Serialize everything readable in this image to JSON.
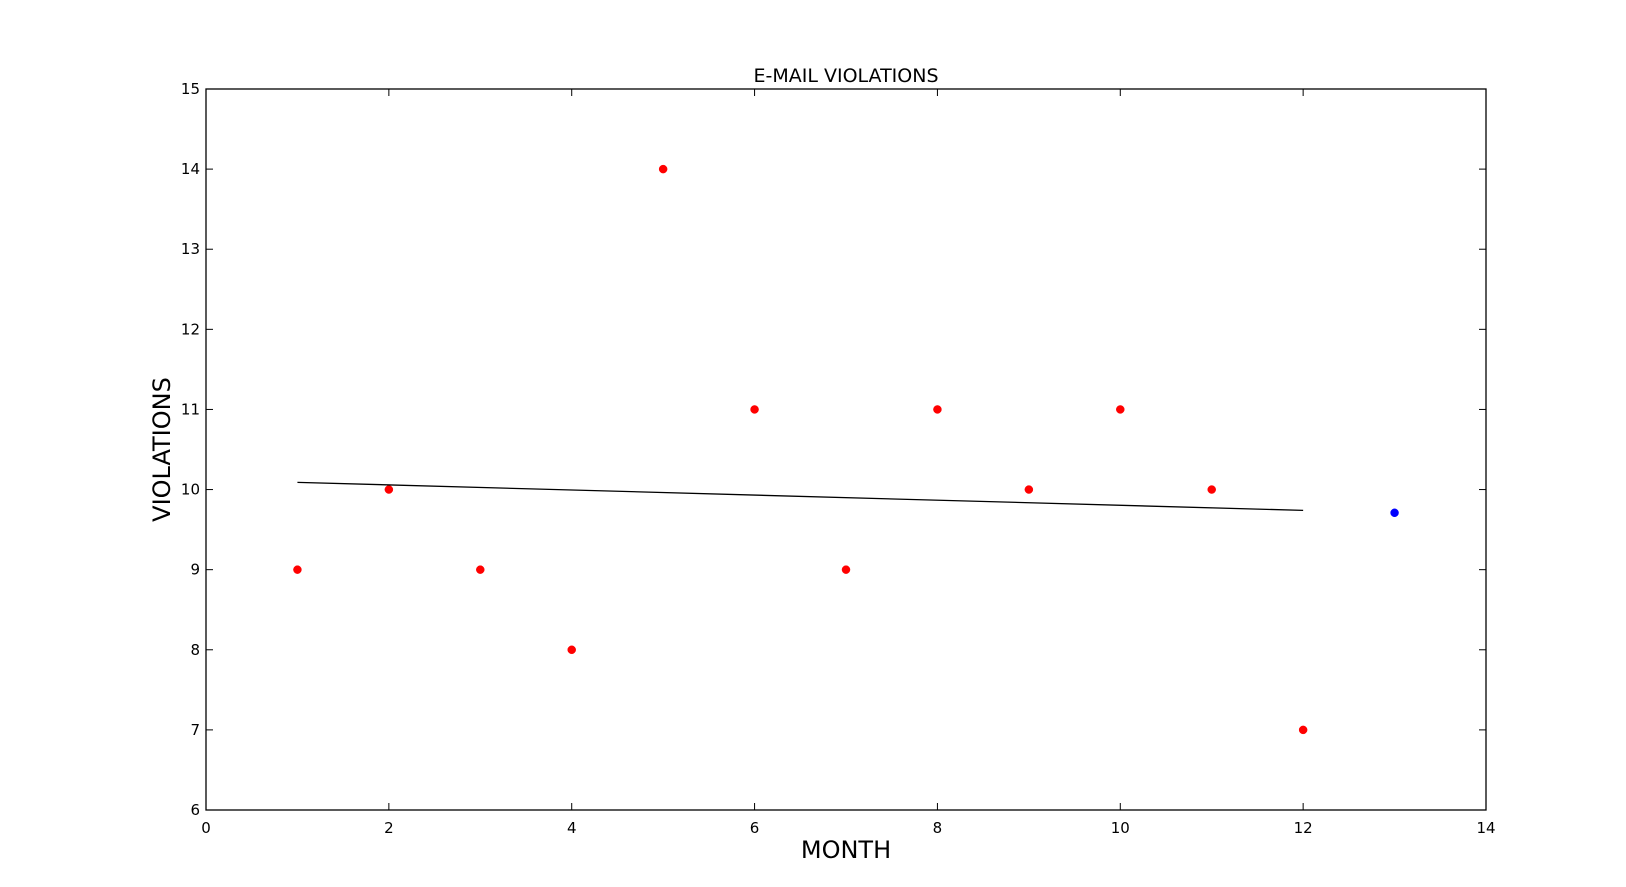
{
  "chart_data": {
    "type": "scatter",
    "title": "E-MAIL VIOLATIONS",
    "xlabel": "MONTH",
    "ylabel": "VIOLATIONS",
    "xlim": [
      0,
      14
    ],
    "ylim": [
      6,
      15
    ],
    "xticks": [
      0,
      2,
      4,
      6,
      8,
      10,
      12,
      14
    ],
    "yticks": [
      6,
      7,
      8,
      9,
      10,
      11,
      12,
      13,
      14,
      15
    ],
    "grid": false,
    "series": [
      {
        "kind": "scatter",
        "color": "#ff0000",
        "x": [
          1,
          2,
          3,
          4,
          5,
          6,
          7,
          8,
          9,
          10,
          11,
          12
        ],
        "y": [
          9,
          10,
          9,
          8,
          14,
          11,
          9,
          11,
          10,
          11,
          10,
          7
        ]
      },
      {
        "kind": "line",
        "color": "#000000",
        "x": [
          1,
          12
        ],
        "y": [
          10.09,
          9.74
        ]
      },
      {
        "kind": "scatter",
        "color": "#0000ff",
        "x": [
          13
        ],
        "y": [
          9.71
        ]
      }
    ]
  }
}
